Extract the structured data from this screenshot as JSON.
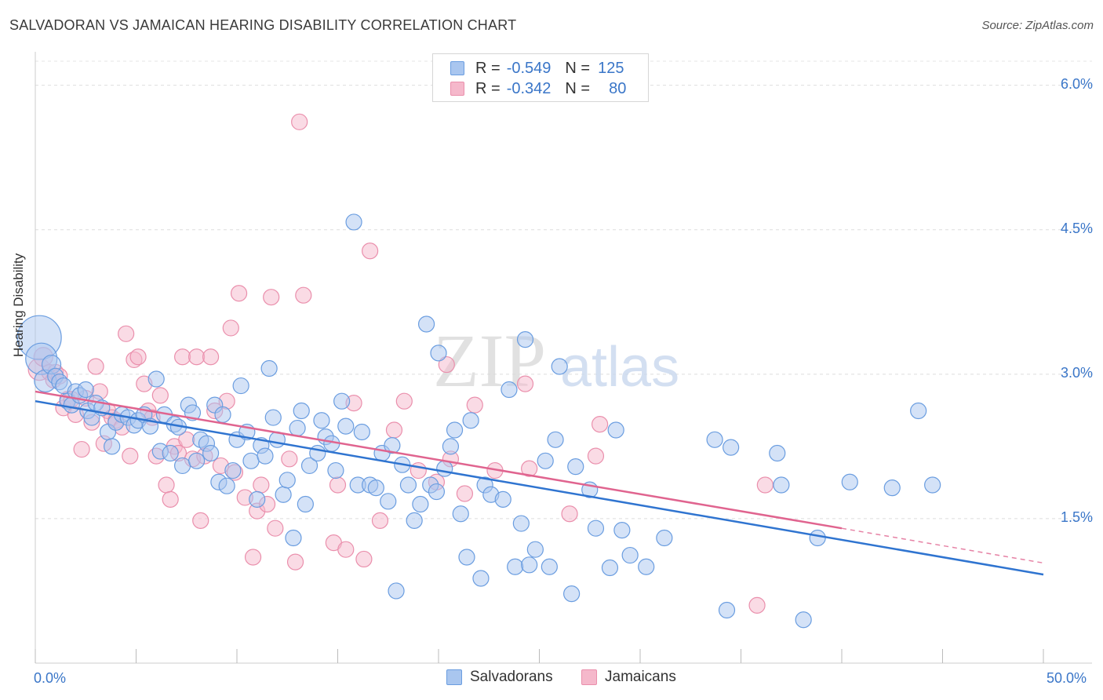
{
  "title": "SALVADORAN VS JAMAICAN HEARING DISABILITY CORRELATION CHART",
  "source": "Source: ZipAtlas.com",
  "watermark": "ZIPatlas",
  "colors": {
    "blue_fill": "#a9c6ef",
    "blue_stroke": "#6a9de0",
    "blue_line": "#2f74d0",
    "pink_fill": "#f5b8cb",
    "pink_stroke": "#ea8fac",
    "pink_line": "#e0648f",
    "axis_text": "#3a76c8"
  },
  "legend": {
    "rows": [
      {
        "r_label": "R =",
        "r_value": "-0.549",
        "n_label": "N =",
        "n_value": "125"
      },
      {
        "r_label": "R =",
        "r_value": "-0.342",
        "n_label": "N =",
        "n_value": "80"
      }
    ]
  },
  "bottom_legend": {
    "items": [
      {
        "label": "Salvadorans"
      },
      {
        "label": "Jamaicans"
      }
    ]
  },
  "chart_data": {
    "type": "scatter",
    "title": "SALVADORAN VS JAMAICAN HEARING DISABILITY CORRELATION CHART",
    "xlabel": "",
    "ylabel": "Hearing Disability",
    "xlim": [
      0,
      50
    ],
    "ylim": [
      0,
      6.25
    ],
    "x_tick_labels": [
      "0.0%",
      "50.0%"
    ],
    "y_ticks": [
      1.5,
      3.0,
      4.5,
      6.0
    ],
    "y_tick_labels": [
      "1.5%",
      "3.0%",
      "4.5%",
      "6.0%"
    ],
    "grid": "horizontal dashed",
    "legend_position": "top-center",
    "series": [
      {
        "name": "Salvadorans",
        "r": -0.549,
        "n": 125,
        "trend": {
          "x0": 0,
          "y0": 2.72,
          "x1": 50,
          "y1": 0.92
        },
        "points": [
          [
            0.2,
            3.38,
            28
          ],
          [
            0.3,
            3.16,
            20
          ],
          [
            0.5,
            2.93,
            14
          ],
          [
            0.8,
            3.1,
            12
          ],
          [
            1.0,
            2.98,
            10
          ],
          [
            1.2,
            2.92,
            10
          ],
          [
            1.4,
            2.88,
            10
          ],
          [
            1.6,
            2.72,
            10
          ],
          [
            1.8,
            2.68,
            10
          ],
          [
            2.0,
            2.82,
            10
          ],
          [
            2.2,
            2.78,
            10
          ],
          [
            2.5,
            2.84,
            10
          ],
          [
            2.6,
            2.62,
            10
          ],
          [
            2.8,
            2.55,
            10
          ],
          [
            3.0,
            2.7,
            10
          ],
          [
            3.3,
            2.65,
            10
          ],
          [
            3.6,
            2.4,
            10
          ],
          [
            3.8,
            2.25,
            10
          ],
          [
            4.0,
            2.5,
            10
          ],
          [
            4.3,
            2.58,
            10
          ],
          [
            4.6,
            2.55,
            10
          ],
          [
            4.9,
            2.47,
            10
          ],
          [
            5.1,
            2.52,
            10
          ],
          [
            5.4,
            2.58,
            10
          ],
          [
            5.7,
            2.46,
            10
          ],
          [
            6.0,
            2.95,
            10
          ],
          [
            6.2,
            2.2,
            10
          ],
          [
            6.4,
            2.58,
            10
          ],
          [
            6.7,
            2.18,
            10
          ],
          [
            6.9,
            2.48,
            10
          ],
          [
            7.1,
            2.45,
            10
          ],
          [
            7.3,
            2.05,
            10
          ],
          [
            7.6,
            2.68,
            10
          ],
          [
            7.8,
            2.6,
            10
          ],
          [
            8.0,
            2.1,
            10
          ],
          [
            8.2,
            2.32,
            10
          ],
          [
            8.5,
            2.28,
            10
          ],
          [
            8.7,
            2.18,
            10
          ],
          [
            8.9,
            2.68,
            10
          ],
          [
            9.1,
            1.88,
            10
          ],
          [
            9.3,
            2.58,
            10
          ],
          [
            9.5,
            1.84,
            10
          ],
          [
            9.8,
            2.0,
            10
          ],
          [
            10.0,
            2.32,
            10
          ],
          [
            10.2,
            2.88,
            10
          ],
          [
            10.5,
            2.4,
            10
          ],
          [
            10.7,
            2.1,
            10
          ],
          [
            11.0,
            1.7,
            10
          ],
          [
            11.2,
            2.26,
            10
          ],
          [
            11.4,
            2.15,
            10
          ],
          [
            11.6,
            3.06,
            10
          ],
          [
            11.8,
            2.55,
            10
          ],
          [
            12.0,
            2.32,
            10
          ],
          [
            12.3,
            1.75,
            10
          ],
          [
            12.5,
            1.9,
            10
          ],
          [
            12.8,
            1.3,
            10
          ],
          [
            13.0,
            2.44,
            10
          ],
          [
            13.2,
            2.62,
            10
          ],
          [
            13.4,
            1.65,
            10
          ],
          [
            13.6,
            2.05,
            10
          ],
          [
            14.0,
            2.18,
            10
          ],
          [
            14.2,
            2.52,
            10
          ],
          [
            14.4,
            2.35,
            10
          ],
          [
            14.7,
            2.28,
            10
          ],
          [
            14.9,
            2.0,
            10
          ],
          [
            15.2,
            2.72,
            10
          ],
          [
            15.4,
            2.46,
            10
          ],
          [
            15.8,
            4.58,
            10
          ],
          [
            16.0,
            1.85,
            10
          ],
          [
            16.2,
            2.4,
            10
          ],
          [
            16.6,
            1.85,
            10
          ],
          [
            16.9,
            1.82,
            10
          ],
          [
            17.2,
            2.18,
            10
          ],
          [
            17.5,
            1.68,
            10
          ],
          [
            17.7,
            2.26,
            10
          ],
          [
            17.9,
            0.75,
            10
          ],
          [
            18.2,
            2.06,
            10
          ],
          [
            18.5,
            1.85,
            10
          ],
          [
            18.8,
            1.48,
            10
          ],
          [
            19.1,
            1.65,
            10
          ],
          [
            19.4,
            3.52,
            10
          ],
          [
            19.6,
            1.85,
            10
          ],
          [
            19.9,
            1.78,
            10
          ],
          [
            20.0,
            3.22,
            10
          ],
          [
            20.3,
            2.02,
            10
          ],
          [
            20.6,
            2.25,
            10
          ],
          [
            20.8,
            2.42,
            10
          ],
          [
            21.1,
            1.55,
            10
          ],
          [
            21.4,
            1.1,
            10
          ],
          [
            21.6,
            2.52,
            10
          ],
          [
            22.1,
            0.88,
            10
          ],
          [
            22.3,
            1.85,
            10
          ],
          [
            22.6,
            1.75,
            10
          ],
          [
            23.2,
            1.7,
            10
          ],
          [
            23.5,
            2.84,
            10
          ],
          [
            23.8,
            1.0,
            10
          ],
          [
            24.1,
            1.45,
            10
          ],
          [
            24.3,
            3.36,
            10
          ],
          [
            24.5,
            1.02,
            10
          ],
          [
            24.8,
            1.18,
            10
          ],
          [
            25.3,
            2.1,
            10
          ],
          [
            25.5,
            1.0,
            10
          ],
          [
            25.8,
            2.32,
            10
          ],
          [
            26.0,
            3.08,
            10
          ],
          [
            26.6,
            0.72,
            10
          ],
          [
            26.8,
            2.04,
            10
          ],
          [
            27.5,
            1.8,
            10
          ],
          [
            27.8,
            1.4,
            10
          ],
          [
            28.5,
            0.99,
            10
          ],
          [
            28.8,
            2.42,
            10
          ],
          [
            29.1,
            1.38,
            10
          ],
          [
            29.5,
            1.12,
            10
          ],
          [
            30.3,
            1.0,
            10
          ],
          [
            31.2,
            1.3,
            10
          ],
          [
            33.7,
            2.32,
            10
          ],
          [
            34.3,
            0.55,
            10
          ],
          [
            34.5,
            2.24,
            10
          ],
          [
            36.8,
            2.18,
            10
          ],
          [
            37.0,
            1.85,
            10
          ],
          [
            38.1,
            0.45,
            10
          ],
          [
            38.8,
            1.3,
            10
          ],
          [
            40.4,
            1.88,
            10
          ],
          [
            42.5,
            1.82,
            10
          ],
          [
            43.8,
            2.62,
            10
          ],
          [
            44.5,
            1.85,
            10
          ]
        ]
      },
      {
        "name": "Jamaicans",
        "r": -0.342,
        "n": 80,
        "trend": {
          "x0": 0,
          "y0": 2.82,
          "x1": 40,
          "y1": 1.4,
          "dash_x1": 50,
          "dash_y1": 1.04
        },
        "points": [
          [
            0.2,
            3.05,
            14
          ],
          [
            0.4,
            3.18,
            12
          ],
          [
            0.7,
            3.02,
            10
          ],
          [
            0.9,
            2.94,
            10
          ],
          [
            1.0,
            3.02,
            10
          ],
          [
            1.2,
            2.98,
            10
          ],
          [
            1.4,
            2.65,
            10
          ],
          [
            1.6,
            2.74,
            10
          ],
          [
            1.8,
            2.74,
            10
          ],
          [
            2.0,
            2.58,
            10
          ],
          [
            2.3,
            2.22,
            10
          ],
          [
            2.5,
            2.75,
            10
          ],
          [
            2.8,
            2.5,
            10
          ],
          [
            3.0,
            3.08,
            10
          ],
          [
            3.2,
            2.82,
            10
          ],
          [
            3.4,
            2.28,
            10
          ],
          [
            3.6,
            2.62,
            10
          ],
          [
            3.8,
            2.55,
            10
          ],
          [
            4.0,
            2.52,
            10
          ],
          [
            4.3,
            2.45,
            10
          ],
          [
            4.5,
            3.42,
            10
          ],
          [
            4.7,
            2.15,
            10
          ],
          [
            4.9,
            3.15,
            10
          ],
          [
            5.1,
            3.18,
            10
          ],
          [
            5.4,
            2.9,
            10
          ],
          [
            5.6,
            2.62,
            10
          ],
          [
            5.8,
            2.55,
            10
          ],
          [
            6.0,
            2.15,
            10
          ],
          [
            6.2,
            2.78,
            10
          ],
          [
            6.5,
            1.85,
            10
          ],
          [
            6.7,
            1.7,
            10
          ],
          [
            6.9,
            2.25,
            10
          ],
          [
            7.1,
            2.18,
            10
          ],
          [
            7.3,
            3.18,
            10
          ],
          [
            7.5,
            2.32,
            10
          ],
          [
            7.8,
            2.12,
            10
          ],
          [
            8.0,
            3.18,
            10
          ],
          [
            8.2,
            1.48,
            10
          ],
          [
            8.4,
            2.15,
            10
          ],
          [
            8.7,
            3.18,
            10
          ],
          [
            8.9,
            2.62,
            10
          ],
          [
            9.2,
            2.05,
            10
          ],
          [
            9.5,
            2.72,
            10
          ],
          [
            9.7,
            3.48,
            10
          ],
          [
            9.9,
            1.98,
            10
          ],
          [
            10.1,
            3.84,
            10
          ],
          [
            10.4,
            1.72,
            10
          ],
          [
            10.8,
            1.1,
            10
          ],
          [
            11.0,
            1.58,
            10
          ],
          [
            11.2,
            1.85,
            10
          ],
          [
            11.5,
            1.65,
            10
          ],
          [
            11.7,
            3.8,
            10
          ],
          [
            11.9,
            1.4,
            10
          ],
          [
            12.6,
            2.12,
            10
          ],
          [
            12.9,
            1.05,
            10
          ],
          [
            13.1,
            5.62,
            10
          ],
          [
            13.3,
            3.82,
            10
          ],
          [
            14.8,
            1.25,
            10
          ],
          [
            15.0,
            1.85,
            10
          ],
          [
            15.4,
            1.18,
            10
          ],
          [
            15.8,
            2.7,
            10
          ],
          [
            16.3,
            1.08,
            10
          ],
          [
            16.6,
            4.28,
            10
          ],
          [
            17.1,
            1.48,
            10
          ],
          [
            17.8,
            2.42,
            10
          ],
          [
            18.3,
            2.72,
            10
          ],
          [
            19.0,
            2.0,
            10
          ],
          [
            19.9,
            1.88,
            10
          ],
          [
            20.4,
            3.1,
            10
          ],
          [
            20.6,
            2.12,
            10
          ],
          [
            21.3,
            1.76,
            10
          ],
          [
            21.8,
            2.68,
            10
          ],
          [
            22.8,
            2.0,
            10
          ],
          [
            24.3,
            2.9,
            10
          ],
          [
            24.5,
            2.02,
            10
          ],
          [
            26.5,
            1.55,
            10
          ],
          [
            27.8,
            2.15,
            10
          ],
          [
            28.0,
            2.48,
            10
          ],
          [
            35.8,
            0.6,
            10
          ],
          [
            36.2,
            1.85,
            10
          ]
        ]
      }
    ]
  }
}
